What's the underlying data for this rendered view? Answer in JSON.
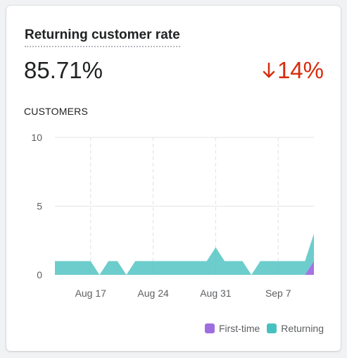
{
  "card": {
    "title": "Returning customer rate",
    "value": "85.71%",
    "change": "14%",
    "change_direction": "down",
    "change_color": "#d72c0d",
    "section_label": "CUSTOMERS"
  },
  "chart_data": {
    "type": "area",
    "stacked": true,
    "ylim": [
      0,
      10
    ],
    "y_ticks": [
      0,
      5,
      10
    ],
    "x_ticks": [
      {
        "label": "Aug 17",
        "day": 17
      },
      {
        "label": "Aug 24",
        "day": 24
      },
      {
        "label": "Aug 31",
        "day": 31
      },
      {
        "label": "Sep 7",
        "day": 38
      }
    ],
    "x": [
      "Aug 13",
      "Aug 14",
      "Aug 15",
      "Aug 16",
      "Aug 17",
      "Aug 18",
      "Aug 19",
      "Aug 20",
      "Aug 21",
      "Aug 22",
      "Aug 23",
      "Aug 24",
      "Aug 25",
      "Aug 26",
      "Aug 27",
      "Aug 28",
      "Aug 29",
      "Aug 30",
      "Aug 31",
      "Sep 1",
      "Sep 2",
      "Sep 3",
      "Sep 4",
      "Sep 5",
      "Sep 6",
      "Sep 7",
      "Sep 8",
      "Sep 9",
      "Sep 10",
      "Sep 11"
    ],
    "grid": true,
    "legend_position": "bottom-right",
    "series": [
      {
        "name": "First-time",
        "color": "#9e6de0",
        "values": [
          0,
          0,
          0,
          0,
          0,
          0,
          0,
          0,
          0,
          0,
          0,
          0,
          0,
          0,
          0,
          0,
          0,
          0,
          0,
          0,
          0,
          0,
          0,
          0,
          0,
          0,
          0,
          0,
          0,
          1
        ]
      },
      {
        "name": "Returning",
        "color": "#47c1bf",
        "values": [
          1,
          1,
          1,
          1,
          1,
          0,
          1,
          1,
          0,
          1,
          1,
          1,
          1,
          1,
          1,
          1,
          1,
          1,
          2,
          1,
          1,
          1,
          0,
          1,
          1,
          1,
          1,
          1,
          1,
          2
        ]
      }
    ]
  }
}
